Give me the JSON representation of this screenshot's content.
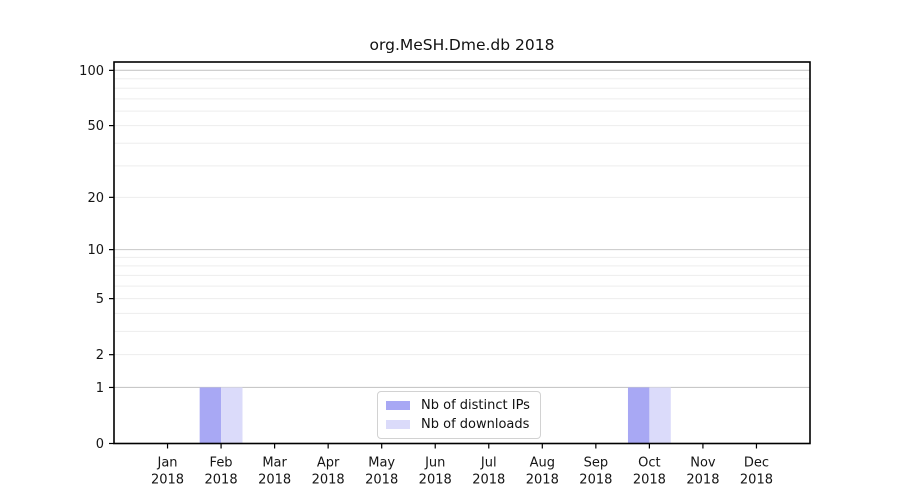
{
  "chart_data": {
    "type": "bar",
    "title": "org.MeSH.Dme.db 2018",
    "x_categories": [
      "Jan",
      "Feb",
      "Mar",
      "Apr",
      "May",
      "Jun",
      "Jul",
      "Aug",
      "Sep",
      "Oct",
      "Nov",
      "Dec"
    ],
    "x_year": "2018",
    "series": [
      {
        "name": "Nb of distinct IPs",
        "color": "#a8a8f4",
        "values": [
          0,
          1,
          0,
          0,
          0,
          0,
          0,
          0,
          0,
          1,
          0,
          0
        ]
      },
      {
        "name": "Nb of downloads",
        "color": "#dbdbfa",
        "values": [
          0,
          1,
          0,
          0,
          0,
          0,
          0,
          0,
          0,
          1,
          0,
          0
        ]
      }
    ],
    "y_axis": {
      "scale": "log1p",
      "ticks": [
        0,
        1,
        2,
        5,
        10,
        20,
        50,
        100
      ],
      "max": 111,
      "major_gridlines": [
        1,
        10,
        100
      ],
      "minor_gridlines": [
        2,
        3,
        4,
        6,
        7,
        8,
        9,
        5,
        20,
        30,
        40,
        50,
        60,
        70,
        80,
        90
      ]
    },
    "legend_position": "bottom-center",
    "grid": "on",
    "colors": {
      "axis": "#000000",
      "major_grid": "#c8c8c8",
      "minor_grid": "#ededed",
      "tick_text": "#151515",
      "background": "#ffffff",
      "legend_border": "#d2d2d2"
    }
  }
}
